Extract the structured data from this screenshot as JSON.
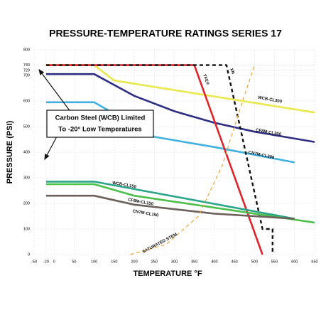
{
  "chart_data": {
    "type": "line",
    "title": "PRESSURE-TEMPERATURE RATINGS SERIES 17",
    "x_label": "TEMPERATURE °F",
    "y_label": "PRESSURE (PSI)",
    "annotation": [
      "Carbon Steel (WCB) Limited",
      "To -20° Low Temperatures"
    ],
    "xlim": [
      -50,
      650
    ],
    "ylim": [
      0,
      800
    ],
    "xticks": [
      -50,
      -20,
      0,
      50,
      100,
      150,
      200,
      250,
      300,
      350,
      400,
      450,
      500,
      550,
      600,
      650
    ],
    "yticks": [
      0,
      100,
      200,
      300,
      400,
      500,
      600,
      700,
      720,
      740,
      800
    ],
    "grid": true,
    "series": [
      {
        "name": "WCB-CL300",
        "color": "#e9e84c",
        "x": [
          -20,
          100,
          150,
          650
        ],
        "values": [
          740,
          740,
          680,
          555
        ]
      },
      {
        "name": "CF8M-CL300",
        "color": "#2e2f82",
        "x": [
          -20,
          100,
          200,
          300,
          400,
          500,
          650
        ],
        "values": [
          705,
          705,
          620,
          560,
          515,
          480,
          440
        ]
      },
      {
        "name": "CN7M-CL300",
        "color": "#3fb1e0",
        "x": [
          -20,
          100,
          150,
          250,
          400,
          600
        ],
        "values": [
          595,
          595,
          550,
          460,
          420,
          360
        ]
      },
      {
        "name": "TFE®",
        "color": "#e0242b",
        "x": [
          -20,
          350,
          520
        ],
        "values": [
          740,
          740,
          0
        ]
      },
      {
        "name": "XN",
        "color": "#111111",
        "dashed": true,
        "x": [
          -20,
          430,
          520,
          545,
          545
        ],
        "values": [
          740,
          740,
          100,
          100,
          0
        ]
      },
      {
        "name": "WCB-CL150",
        "color": "#2aa58a",
        "x": [
          -20,
          100,
          600
        ],
        "values": [
          285,
          285,
          140
        ]
      },
      {
        "name": "CF8M-CL150",
        "color": "#4cbf4a",
        "x": [
          -20,
          100,
          200,
          650
        ],
        "values": [
          275,
          275,
          230,
          125
        ]
      },
      {
        "name": "CN7M-CL150",
        "color": "#6b615a",
        "x": [
          -20,
          100,
          200,
          400,
          600
        ],
        "values": [
          230,
          230,
          195,
          160,
          140
        ]
      },
      {
        "name": "SATURATED STEM",
        "color": "#f2a33a",
        "dashed": true,
        "x": [
          190,
          280,
          360,
          420,
          460,
          500
        ],
        "values": [
          0,
          40,
          150,
          350,
          550,
          740
        ]
      }
    ]
  }
}
